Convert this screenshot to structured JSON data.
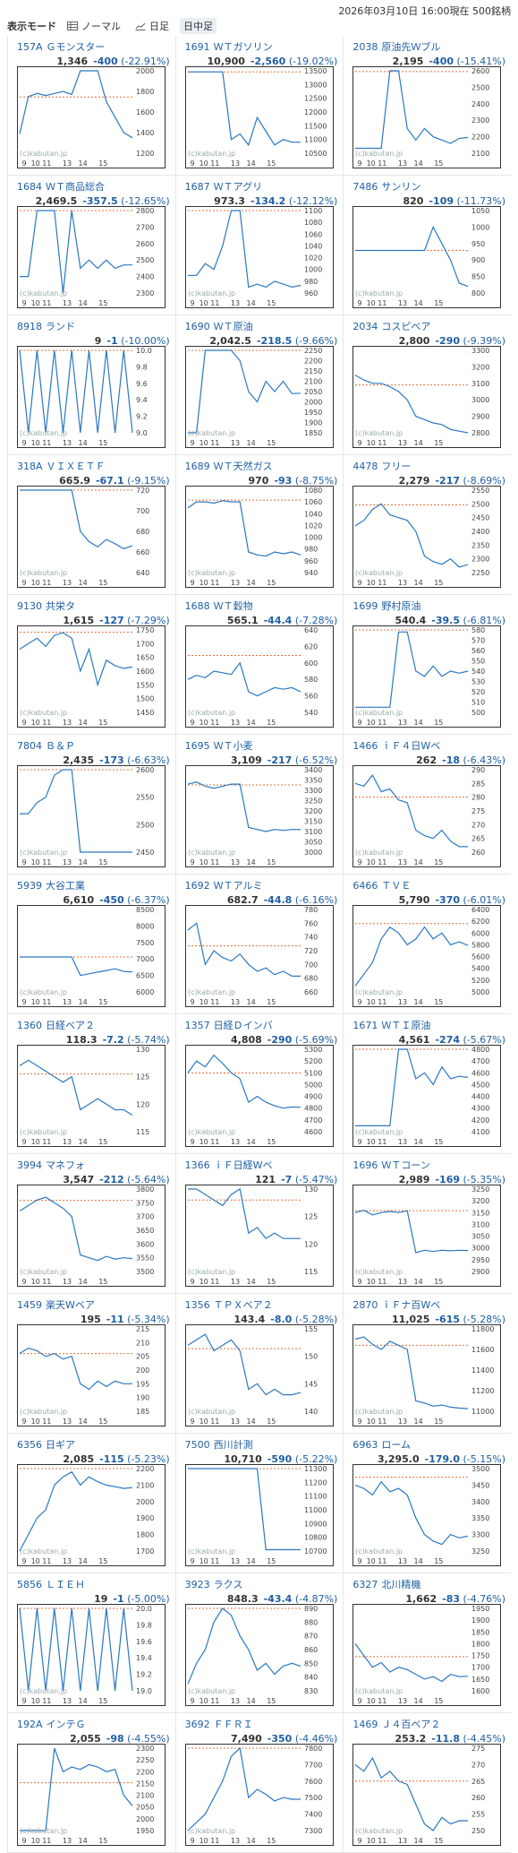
{
  "header": {
    "mode_label": "表示モード",
    "normal_label": "ノーマル",
    "day_label": "日足",
    "intraday_label": "日中足",
    "status": "2026年03月10日  16:00現在  500銘柄"
  },
  "chart_common": {
    "x_labels": [
      "9",
      "10",
      "11",
      "13",
      "14",
      "15"
    ],
    "watermark": "(c)kabutan.jp",
    "line_color": "#2a78c2",
    "ref_color": "#e8713a"
  },
  "stocks": [
    {
      "code": "157A",
      "name": "Ｇモンスター",
      "price": "1,346",
      "chg": "-400",
      "pct": "(-22.91%)",
      "ticks": [
        "2000",
        "1800",
        "1600",
        "1400",
        "1200"
      ],
      "y": [
        1390,
        1750,
        1780,
        1760,
        1780,
        1800,
        1770,
        2080,
        2150,
        2000,
        1700,
        1550,
        1400,
        1350
      ],
      "ref": 1746
    },
    {
      "code": "1691",
      "name": "ＷＴガソリン",
      "price": "10,900",
      "chg": "-2,560",
      "pct": "(-19.02%)",
      "ticks": [
        "13500",
        "13000",
        "12500",
        "12000",
        "11500",
        "11000",
        "10500"
      ],
      "y": [
        13460,
        13460,
        13460,
        13460,
        13460,
        11000,
        11200,
        10800,
        11800,
        11300,
        10800,
        11000,
        10900,
        10900
      ],
      "ref": 13460
    },
    {
      "code": "2038",
      "name": "原油先Ｗブル",
      "price": "2,195",
      "chg": "-400",
      "pct": "(-15.41%)",
      "ticks": [
        "2600",
        "2500",
        "2400",
        "2300",
        "2200",
        "2100"
      ],
      "y": [
        2130,
        2130,
        2130,
        2130,
        2600,
        2600,
        2250,
        2180,
        2250,
        2200,
        2180,
        2160,
        2190,
        2195
      ],
      "ref": 2595
    },
    {
      "code": "1684",
      "name": "ＷＴ商品総合",
      "price": "2,469.5",
      "chg": "-357.5",
      "pct": "(-12.65%)",
      "ticks": [
        "2800",
        "2700",
        "2600",
        "2500",
        "2400",
        "2300"
      ],
      "y": [
        2400,
        2400,
        2800,
        2800,
        2800,
        2300,
        2800,
        2450,
        2500,
        2450,
        2500,
        2450,
        2470,
        2470
      ],
      "ref": 2827
    },
    {
      "code": "1687",
      "name": "ＷＴアグリ",
      "price": "973.3",
      "chg": "-134.2",
      "pct": "(-12.12%)",
      "ticks": [
        "1100",
        "1080",
        "1060",
        "1040",
        "1020",
        "1000",
        "980",
        "960"
      ],
      "y": [
        990,
        990,
        1010,
        1000,
        1040,
        1100,
        1100,
        970,
        975,
        970,
        980,
        975,
        970,
        973
      ],
      "ref": 1107
    },
    {
      "code": "7486",
      "name": "サンリン",
      "price": "820",
      "chg": "-109",
      "pct": "(-11.73%)",
      "ticks": [
        "1050",
        "1000",
        "950",
        "900",
        "850",
        "800"
      ],
      "y": [
        929,
        929,
        929,
        929,
        929,
        929,
        929,
        929,
        929,
        1000,
        950,
        900,
        830,
        820
      ],
      "ref": 929
    },
    {
      "code": "8918",
      "name": "ランド",
      "price": "9",
      "chg": "-1",
      "pct": "(-10.00%)",
      "ticks": [
        "10.0",
        "9.8",
        "9.6",
        "9.4",
        "9.2",
        "9.0"
      ],
      "y": [
        10,
        9,
        10,
        9,
        10,
        9,
        10,
        9,
        10,
        9,
        10,
        9,
        10,
        9
      ],
      "ref": 10
    },
    {
      "code": "1690",
      "name": "ＷＴ原油",
      "price": "2,042.5",
      "chg": "-218.5",
      "pct": "(-9.66%)",
      "ticks": [
        "2250",
        "2200",
        "2150",
        "2100",
        "2050",
        "2000",
        "1950",
        "1900",
        "1850"
      ],
      "y": [
        1850,
        1850,
        2250,
        2250,
        2250,
        2250,
        2200,
        2050,
        2000,
        2100,
        2050,
        2100,
        2040,
        2042
      ],
      "ref": 2261
    },
    {
      "code": "2034",
      "name": "コスピベア",
      "price": "2,800",
      "chg": "-290",
      "pct": "(-9.39%)",
      "ticks": [
        "3300",
        "3200",
        "3100",
        "3000",
        "2900",
        "2800"
      ],
      "y": [
        3150,
        3120,
        3100,
        3100,
        3080,
        3050,
        3000,
        2900,
        2880,
        2860,
        2850,
        2820,
        2810,
        2800
      ],
      "ref": 3090
    },
    {
      "code": "318A",
      "name": "ＶＩＸＥＴＦ",
      "price": "665.9",
      "chg": "-67.1",
      "pct": "(-9.15%)",
      "ticks": [
        "720",
        "700",
        "680",
        "660",
        "640"
      ],
      "y": [
        733,
        733,
        733,
        733,
        733,
        733,
        733,
        680,
        670,
        665,
        672,
        668,
        663,
        666
      ],
      "ref": 733
    },
    {
      "code": "1689",
      "name": "ＷＴ天然ガス",
      "price": "970",
      "chg": "-93",
      "pct": "(-8.75%)",
      "ticks": [
        "1080",
        "1060",
        "1040",
        "1020",
        "1000",
        "980",
        "960",
        "940"
      ],
      "y": [
        1050,
        1060,
        1060,
        1058,
        1062,
        1060,
        1060,
        975,
        970,
        968,
        975,
        972,
        975,
        970
      ],
      "ref": 1063
    },
    {
      "code": "4478",
      "name": "フリー",
      "price": "2,279",
      "chg": "-217",
      "pct": "(-8.69%)",
      "ticks": [
        "2550",
        "2500",
        "2450",
        "2400",
        "2350",
        "2300",
        "2250"
      ],
      "y": [
        2420,
        2440,
        2480,
        2500,
        2460,
        2450,
        2440,
        2400,
        2310,
        2290,
        2280,
        2300,
        2270,
        2279
      ],
      "ref": 2496
    },
    {
      "code": "9130",
      "name": "共栄タ",
      "price": "1,615",
      "chg": "-127",
      "pct": "(-7.29%)",
      "ticks": [
        "1750",
        "1700",
        "1650",
        "1600",
        "1550",
        "1500",
        "1450"
      ],
      "y": [
        1680,
        1700,
        1720,
        1690,
        1730,
        1740,
        1720,
        1600,
        1680,
        1550,
        1640,
        1620,
        1610,
        1615
      ],
      "ref": 1742
    },
    {
      "code": "1688",
      "name": "ＷＴ穀物",
      "price": "565.1",
      "chg": "-44.4",
      "pct": "(-7.28%)",
      "ticks": [
        "640",
        "620",
        "600",
        "580",
        "560",
        "540"
      ],
      "y": [
        580,
        585,
        582,
        590,
        588,
        586,
        600,
        565,
        560,
        565,
        570,
        568,
        570,
        565
      ],
      "ref": 609
    },
    {
      "code": "1699",
      "name": "野村原油",
      "price": "540.4",
      "chg": "-39.5",
      "pct": "(-6.81%)",
      "ticks": [
        "580",
        "570",
        "560",
        "550",
        "540",
        "530",
        "520",
        "510",
        "500"
      ],
      "y": [
        505,
        505,
        505,
        505,
        505,
        578,
        578,
        540,
        535,
        545,
        535,
        540,
        538,
        540
      ],
      "ref": 580
    },
    {
      "code": "7804",
      "name": "Ｂ＆Ｐ",
      "price": "2,435",
      "chg": "-173",
      "pct": "(-6.63%)",
      "ticks": [
        "2600",
        "2550",
        "2500",
        "2450"
      ],
      "y": [
        2520,
        2520,
        2540,
        2550,
        2590,
        2600,
        2600,
        2440,
        2450,
        2440,
        2445,
        2438,
        2435,
        2435
      ],
      "ref": 2608
    },
    {
      "code": "1695",
      "name": "ＷＴ小麦",
      "price": "3,109",
      "chg": "-217",
      "pct": "(-6.52%)",
      "ticks": [
        "3400",
        "3350",
        "3300",
        "3250",
        "3200",
        "3150",
        "3100",
        "3050",
        "3000"
      ],
      "y": [
        3330,
        3340,
        3320,
        3310,
        3320,
        3330,
        3330,
        3120,
        3110,
        3100,
        3110,
        3105,
        3110,
        3109
      ],
      "ref": 3326
    },
    {
      "code": "1466",
      "name": "ｉＦ４日Wベ",
      "price": "262",
      "chg": "-18",
      "pct": "(-6.43%)",
      "ticks": [
        "290",
        "285",
        "280",
        "275",
        "270",
        "265",
        "260"
      ],
      "y": [
        285,
        284,
        288,
        282,
        283,
        279,
        278,
        268,
        266,
        265,
        268,
        264,
        262,
        262
      ],
      "ref": 280
    },
    {
      "code": "5939",
      "name": "大谷工業",
      "price": "6,610",
      "chg": "-450",
      "pct": "(-6.37%)",
      "ticks": [
        "8500",
        "8000",
        "7500",
        "7000",
        "6500",
        "6000"
      ],
      "y": [
        7060,
        7060,
        7060,
        7060,
        7060,
        7060,
        7060,
        6500,
        6550,
        6600,
        6650,
        6700,
        6620,
        6610
      ],
      "ref": 7060
    },
    {
      "code": "1692",
      "name": "ＷＴアルミ",
      "price": "682.7",
      "chg": "-44.8",
      "pct": "(-6.16%)",
      "ticks": [
        "780",
        "760",
        "740",
        "720",
        "700",
        "680",
        "660"
      ],
      "y": [
        750,
        760,
        700,
        720,
        710,
        705,
        715,
        700,
        690,
        695,
        685,
        690,
        683,
        683
      ],
      "ref": 727
    },
    {
      "code": "6466",
      "name": "ＴＶＥ",
      "price": "5,790",
      "chg": "-370",
      "pct": "(-6.01%)",
      "ticks": [
        "6400",
        "6200",
        "6000",
        "5800",
        "5600",
        "5400",
        "5200",
        "5000"
      ],
      "y": [
        5100,
        5300,
        5500,
        5900,
        6100,
        6000,
        5800,
        5900,
        6100,
        5900,
        6000,
        5800,
        5850,
        5790
      ],
      "ref": 6160
    },
    {
      "code": "1360",
      "name": "日経ベア２",
      "price": "118.3",
      "chg": "-7.2",
      "pct": "(-5.74%)",
      "ticks": [
        "130",
        "125",
        "120",
        "115"
      ],
      "y": [
        127,
        128,
        127,
        126,
        125,
        124,
        125,
        119,
        120,
        121,
        120,
        119,
        119,
        118
      ],
      "ref": 125.5
    },
    {
      "code": "1357",
      "name": "日経Ｄインバ",
      "price": "4,808",
      "chg": "-290",
      "pct": "(-5.69%)",
      "ticks": [
        "5300",
        "5200",
        "5100",
        "5000",
        "4900",
        "4800",
        "4700",
        "4600"
      ],
      "y": [
        5100,
        5200,
        5150,
        5250,
        5180,
        5100,
        5050,
        4850,
        4900,
        4850,
        4820,
        4800,
        4810,
        4808
      ],
      "ref": 5098
    },
    {
      "code": "1671",
      "name": "ＷＴＩ原油",
      "price": "4,561",
      "chg": "-274",
      "pct": "(-5.67%)",
      "ticks": [
        "4800",
        "4700",
        "4600",
        "4500",
        "4400",
        "4300",
        "4200",
        "4100"
      ],
      "y": [
        4150,
        4150,
        4150,
        4150,
        4150,
        4800,
        4800,
        4550,
        4600,
        4500,
        4650,
        4550,
        4570,
        4561
      ],
      "ref": 4835
    },
    {
      "code": "3994",
      "name": "マネフォ",
      "price": "3,547",
      "chg": "-212",
      "pct": "(-5.64%)",
      "ticks": [
        "3800",
        "3750",
        "3700",
        "3650",
        "3600",
        "3550",
        "3500"
      ],
      "y": [
        3720,
        3740,
        3760,
        3770,
        3750,
        3730,
        3700,
        3560,
        3550,
        3540,
        3555,
        3545,
        3550,
        3547
      ],
      "ref": 3759
    },
    {
      "code": "1366",
      "name": "ｉＦ日経Wベ",
      "price": "121",
      "chg": "-7",
      "pct": "(-5.47%)",
      "ticks": [
        "130",
        "125",
        "120",
        "115"
      ],
      "y": [
        130,
        131,
        129,
        128,
        127,
        129,
        130,
        122,
        123,
        121,
        122,
        121,
        121,
        121
      ],
      "ref": 128
    },
    {
      "code": "1696",
      "name": "ＷＴコーン",
      "price": "2,989",
      "chg": "-169",
      "pct": "(-5.35%)",
      "ticks": [
        "3250",
        "3200",
        "3150",
        "3100",
        "3050",
        "3000",
        "2950",
        "2900"
      ],
      "y": [
        3150,
        3160,
        3140,
        3150,
        3155,
        3150,
        3158,
        2980,
        2990,
        2985,
        2990,
        2988,
        2990,
        2989
      ],
      "ref": 3158
    },
    {
      "code": "1459",
      "name": "楽天Wベア",
      "price": "195",
      "chg": "-11",
      "pct": "(-5.34%)",
      "ticks": [
        "215",
        "210",
        "205",
        "200",
        "195",
        "190",
        "185"
      ],
      "y": [
        206,
        208,
        207,
        205,
        206,
        204,
        205,
        195,
        193,
        196,
        194,
        196,
        195,
        195
      ],
      "ref": 206
    },
    {
      "code": "1356",
      "name": "ＴＰＸベア２",
      "price": "143.4",
      "chg": "-8.0",
      "pct": "(-5.28%)",
      "ticks": [
        "155",
        "150",
        "145",
        "140"
      ],
      "y": [
        152,
        153,
        154,
        151,
        152,
        153,
        151,
        144,
        145,
        143,
        144,
        143,
        143,
        143.4
      ],
      "ref": 151.4
    },
    {
      "code": "2870",
      "name": "ｉＦナ百Wベ",
      "price": "11,025",
      "chg": "-615",
      "pct": "(-5.28%)",
      "ticks": [
        "11800",
        "11600",
        "11400",
        "11200",
        "11000"
      ],
      "y": [
        11700,
        11720,
        11650,
        11600,
        11680,
        11640,
        11600,
        11100,
        11080,
        11050,
        11060,
        11040,
        11030,
        11025
      ],
      "ref": 11640
    },
    {
      "code": "6356",
      "name": "日ギア",
      "price": "2,085",
      "chg": "-115",
      "pct": "(-5.23%)",
      "ticks": [
        "2200",
        "2100",
        "2000",
        "1900",
        "1800",
        "1700"
      ],
      "y": [
        1700,
        1800,
        1900,
        1950,
        2100,
        2150,
        2180,
        2100,
        2150,
        2120,
        2100,
        2090,
        2080,
        2085
      ],
      "ref": 2200
    },
    {
      "code": "7500",
      "name": "西川計測",
      "price": "10,710",
      "chg": "-590",
      "pct": "(-5.22%)",
      "ticks": [
        "11300",
        "11200",
        "11100",
        "11000",
        "10900",
        "10800",
        "10700"
      ],
      "y": [
        11300,
        11300,
        11300,
        11300,
        11300,
        11300,
        11300,
        11300,
        11300,
        10710,
        10710,
        10710,
        10710,
        10710
      ],
      "ref": 11300
    },
    {
      "code": "6963",
      "name": "ローム",
      "price": "3,295.0",
      "chg": "-179.0",
      "pct": "(-5.15%)",
      "ticks": [
        "3500",
        "3450",
        "3400",
        "3350",
        "3300",
        "3250"
      ],
      "y": [
        3450,
        3440,
        3420,
        3460,
        3430,
        3440,
        3420,
        3350,
        3300,
        3280,
        3270,
        3300,
        3290,
        3295
      ],
      "ref": 3474
    },
    {
      "code": "5856",
      "name": "ＬＩＥＨ",
      "price": "19",
      "chg": "-1",
      "pct": "(-5.00%)",
      "ticks": [
        "20.0",
        "19.8",
        "19.6",
        "19.4",
        "19.2",
        "19.0"
      ],
      "y": [
        20,
        19,
        20,
        19,
        20,
        19,
        20,
        19,
        20,
        19,
        20,
        19,
        20,
        19
      ],
      "ref": 20
    },
    {
      "code": "3923",
      "name": "ラクス",
      "price": "848.3",
      "chg": "-43.4",
      "pct": "(-4.87%)",
      "ticks": [
        "890",
        "880",
        "870",
        "860",
        "850",
        "840",
        "830"
      ],
      "y": [
        835,
        850,
        860,
        880,
        890,
        885,
        870,
        860,
        845,
        850,
        842,
        848,
        850,
        848
      ],
      "ref": 892
    },
    {
      "code": "6327",
      "name": "北川精機",
      "price": "1,662",
      "chg": "-83",
      "pct": "(-4.76%)",
      "ticks": [
        "1950",
        "1900",
        "1850",
        "1800",
        "1750",
        "1700",
        "1650",
        "1600"
      ],
      "y": [
        1800,
        1750,
        1700,
        1720,
        1680,
        1700,
        1690,
        1670,
        1650,
        1660,
        1640,
        1670,
        1660,
        1662
      ],
      "ref": 1745
    },
    {
      "code": "192A",
      "name": "インテＧ",
      "price": "2,055",
      "chg": "-98",
      "pct": "(-4.55%)",
      "ticks": [
        "2300",
        "2250",
        "2200",
        "2150",
        "2100",
        "2050",
        "2000",
        "1950"
      ],
      "y": [
        1950,
        1950,
        1950,
        1950,
        2300,
        2200,
        2220,
        2210,
        2230,
        2220,
        2200,
        2210,
        2100,
        2055
      ],
      "ref": 2153
    },
    {
      "code": "3692",
      "name": "ＦＦＲＩ",
      "price": "7,490",
      "chg": "-350",
      "pct": "(-4.46%)",
      "ticks": [
        "7800",
        "7700",
        "7600",
        "7500",
        "7400",
        "7300"
      ],
      "y": [
        7300,
        7350,
        7400,
        7500,
        7600,
        7750,
        7800,
        7500,
        7550,
        7520,
        7480,
        7500,
        7490,
        7490
      ],
      "ref": 7840
    },
    {
      "code": "1469",
      "name": "Ｊ４百ベア２",
      "price": "253.2",
      "chg": "-11.8",
      "pct": "(-4.45%)",
      "ticks": [
        "275",
        "270",
        "265",
        "260",
        "255",
        "250"
      ],
      "y": [
        270,
        268,
        272,
        266,
        268,
        265,
        264,
        258,
        252,
        250,
        254,
        252,
        253,
        253
      ],
      "ref": 265
    }
  ]
}
